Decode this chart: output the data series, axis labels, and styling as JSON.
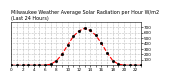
{
  "title": "Milwaukee Weather Average Solar Radiation per Hour W/m2 (Last 24 Hours)",
  "hours": [
    0,
    1,
    2,
    3,
    4,
    5,
    6,
    7,
    8,
    9,
    10,
    11,
    12,
    13,
    14,
    15,
    16,
    17,
    18,
    19,
    20,
    21,
    22,
    23
  ],
  "values": [
    0,
    0,
    0,
    0,
    0,
    0,
    2,
    18,
    80,
    200,
    370,
    530,
    630,
    680,
    640,
    550,
    400,
    230,
    85,
    20,
    2,
    0,
    0,
    0
  ],
  "line_color": "#ff0000",
  "line_style": "--",
  "line_width": 0.8,
  "marker": "s",
  "marker_size": 1.0,
  "marker_color": "#000000",
  "bg_color": "#ffffff",
  "plot_bg_color": "#ffffff",
  "grid_color": "#888888",
  "grid_style": ":",
  "ylim": [
    0,
    800
  ],
  "yticks": [
    100,
    200,
    300,
    400,
    500,
    600,
    700
  ],
  "tick_fontsize": 3.0,
  "title_fontsize": 3.5,
  "title_line1": "Milwaukee Weather Average Solar Radiation per Hour W/m2",
  "title_line2": "(Last 24 Hours)"
}
